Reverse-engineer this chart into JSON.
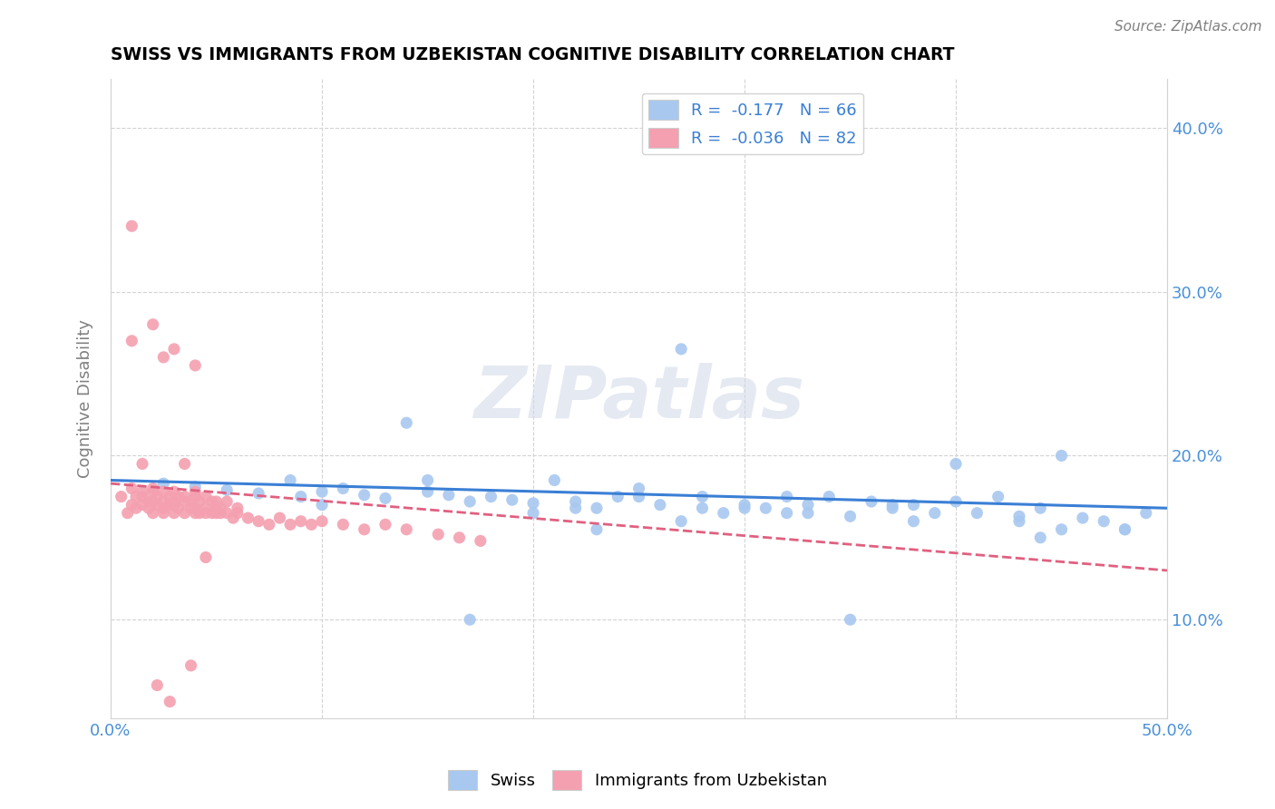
{
  "title": "SWISS VS IMMIGRANTS FROM UZBEKISTAN COGNITIVE DISABILITY CORRELATION CHART",
  "source": "Source: ZipAtlas.com",
  "ylabel": "Cognitive Disability",
  "xlim": [
    0.0,
    0.5
  ],
  "ylim": [
    0.04,
    0.43
  ],
  "xtick_vals": [
    0.0,
    0.1,
    0.2,
    0.3,
    0.4,
    0.5
  ],
  "ytick_vals": [
    0.1,
    0.2,
    0.3,
    0.4
  ],
  "ytick_labels": [
    "10.0%",
    "20.0%",
    "30.0%",
    "40.0%"
  ],
  "xtick_labels": [
    "0.0%",
    "",
    "",
    "",
    "",
    "50.0%"
  ],
  "legend_r_swiss": "-0.177",
  "legend_n_swiss": "66",
  "legend_r_uzbek": "-0.036",
  "legend_n_uzbek": "82",
  "swiss_color": "#a8c8f0",
  "uzbek_color": "#f4a0b0",
  "swiss_line_color": "#3a7fd5",
  "uzbek_line_color": "#e06080",
  "watermark": "ZIPatlas",
  "swiss_x": [
    0.025,
    0.04,
    0.055,
    0.07,
    0.085,
    0.09,
    0.1,
    0.11,
    0.12,
    0.13,
    0.14,
    0.15,
    0.16,
    0.17,
    0.18,
    0.19,
    0.2,
    0.21,
    0.22,
    0.23,
    0.24,
    0.25,
    0.26,
    0.27,
    0.28,
    0.29,
    0.3,
    0.31,
    0.32,
    0.33,
    0.34,
    0.35,
    0.36,
    0.37,
    0.38,
    0.39,
    0.4,
    0.41,
    0.42,
    0.43,
    0.44,
    0.45,
    0.46,
    0.47,
    0.48,
    0.49,
    0.1,
    0.15,
    0.2,
    0.25,
    0.3,
    0.35,
    0.4,
    0.45,
    0.22,
    0.27,
    0.32,
    0.37,
    0.43,
    0.48,
    0.17,
    0.23,
    0.28,
    0.33,
    0.38,
    0.44
  ],
  "swiss_y": [
    0.183,
    0.181,
    0.179,
    0.177,
    0.185,
    0.175,
    0.178,
    0.18,
    0.176,
    0.174,
    0.22,
    0.178,
    0.176,
    0.172,
    0.175,
    0.173,
    0.171,
    0.185,
    0.172,
    0.168,
    0.175,
    0.18,
    0.17,
    0.265,
    0.175,
    0.165,
    0.17,
    0.168,
    0.165,
    0.17,
    0.175,
    0.163,
    0.172,
    0.168,
    0.17,
    0.165,
    0.195,
    0.165,
    0.175,
    0.163,
    0.168,
    0.2,
    0.162,
    0.16,
    0.155,
    0.165,
    0.17,
    0.185,
    0.165,
    0.175,
    0.168,
    0.1,
    0.172,
    0.155,
    0.168,
    0.16,
    0.175,
    0.17,
    0.16,
    0.155,
    0.1,
    0.155,
    0.168,
    0.165,
    0.16,
    0.15
  ],
  "uzbek_x": [
    0.005,
    0.008,
    0.01,
    0.01,
    0.012,
    0.012,
    0.015,
    0.015,
    0.015,
    0.018,
    0.018,
    0.02,
    0.02,
    0.02,
    0.02,
    0.022,
    0.022,
    0.025,
    0.025,
    0.025,
    0.025,
    0.028,
    0.028,
    0.03,
    0.03,
    0.03,
    0.03,
    0.032,
    0.032,
    0.035,
    0.035,
    0.035,
    0.038,
    0.038,
    0.04,
    0.04,
    0.04,
    0.04,
    0.042,
    0.042,
    0.045,
    0.045,
    0.045,
    0.048,
    0.048,
    0.05,
    0.05,
    0.05,
    0.052,
    0.052,
    0.055,
    0.055,
    0.058,
    0.06,
    0.06,
    0.065,
    0.07,
    0.075,
    0.08,
    0.085,
    0.09,
    0.095,
    0.1,
    0.11,
    0.12,
    0.13,
    0.14,
    0.155,
    0.165,
    0.175,
    0.01,
    0.02,
    0.03,
    0.01,
    0.025,
    0.04,
    0.035,
    0.015,
    0.045,
    0.038,
    0.022,
    0.028
  ],
  "uzbek_y": [
    0.175,
    0.165,
    0.18,
    0.17,
    0.175,
    0.168,
    0.178,
    0.17,
    0.175,
    0.172,
    0.168,
    0.178,
    0.172,
    0.165,
    0.18,
    0.17,
    0.175,
    0.178,
    0.168,
    0.172,
    0.165,
    0.175,
    0.17,
    0.178,
    0.165,
    0.172,
    0.17,
    0.168,
    0.175,
    0.172,
    0.165,
    0.175,
    0.168,
    0.172,
    0.165,
    0.175,
    0.168,
    0.178,
    0.165,
    0.172,
    0.168,
    0.165,
    0.175,
    0.165,
    0.172,
    0.168,
    0.165,
    0.172,
    0.165,
    0.168,
    0.165,
    0.172,
    0.162,
    0.165,
    0.168,
    0.162,
    0.16,
    0.158,
    0.162,
    0.158,
    0.16,
    0.158,
    0.16,
    0.158,
    0.155,
    0.158,
    0.155,
    0.152,
    0.15,
    0.148,
    0.34,
    0.28,
    0.265,
    0.27,
    0.26,
    0.255,
    0.195,
    0.195,
    0.138,
    0.072,
    0.06,
    0.05
  ]
}
